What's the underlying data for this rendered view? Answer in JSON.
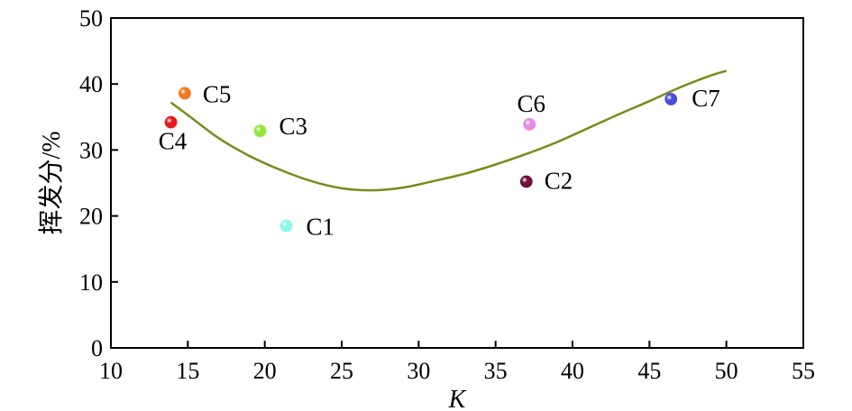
{
  "chart_data": {
    "type": "scatter",
    "title": "",
    "xlabel": "K",
    "ylabel": "挥发分/%",
    "xlim": [
      10,
      55
    ],
    "ylim": [
      0,
      50
    ],
    "xticks": [
      "10",
      "15",
      "20",
      "25",
      "30",
      "35",
      "40",
      "45",
      "50",
      "55"
    ],
    "yticks": [
      "0",
      "10",
      "20",
      "30",
      "40",
      "50"
    ],
    "grid": false,
    "legend": "none",
    "points": [
      {
        "label": "C1",
        "x": 21.4,
        "y": 18.5,
        "color": "#8ff5ea"
      },
      {
        "label": "C2",
        "x": 37.0,
        "y": 25.2,
        "color": "#6e1040"
      },
      {
        "label": "C3",
        "x": 19.7,
        "y": 32.9,
        "color": "#8fe83a"
      },
      {
        "label": "C4",
        "x": 13.9,
        "y": 34.2,
        "color": "#e8191c"
      },
      {
        "label": "C5",
        "x": 14.8,
        "y": 38.6,
        "color": "#f07a1e"
      },
      {
        "label": "C6",
        "x": 37.2,
        "y": 33.9,
        "color": "#e38be8"
      },
      {
        "label": "C7",
        "x": 46.4,
        "y": 37.7,
        "color": "#4a4ed6"
      }
    ],
    "trend_line": {
      "color": "#7a8a1a",
      "x": [
        13.9,
        15,
        17,
        19,
        21,
        23,
        25,
        27,
        29,
        31,
        33,
        35,
        37,
        39,
        41,
        43,
        45,
        47,
        49,
        50
      ],
      "y": [
        37.2,
        35.3,
        31.8,
        29.1,
        27.0,
        25.3,
        24.2,
        23.9,
        24.3,
        25.3,
        26.4,
        27.8,
        29.4,
        31.2,
        33.3,
        35.4,
        37.4,
        39.5,
        41.3,
        42.0
      ]
    }
  }
}
